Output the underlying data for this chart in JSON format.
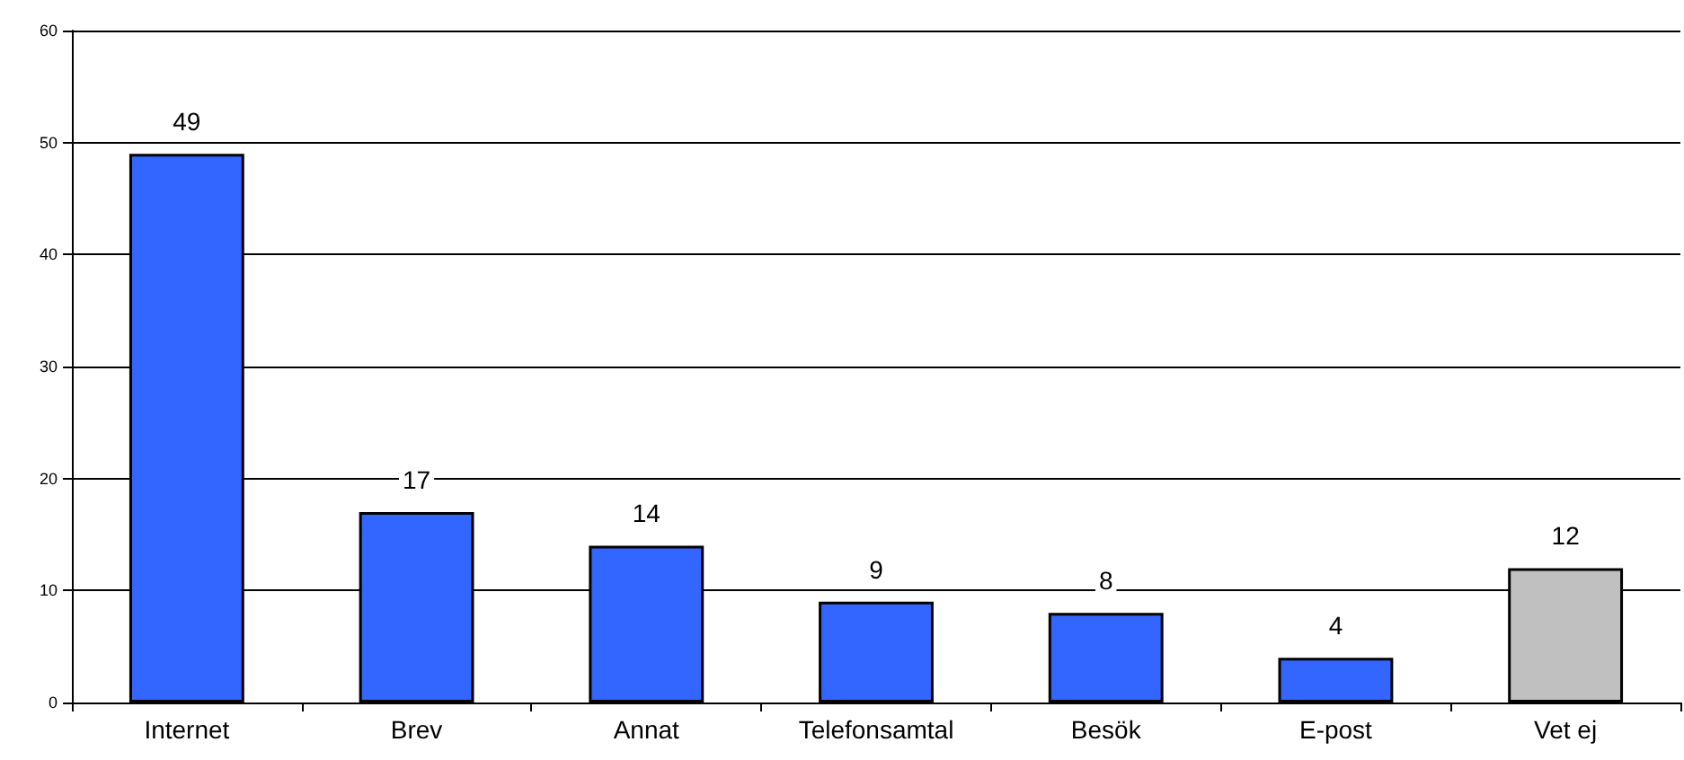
{
  "chart_data": {
    "type": "bar",
    "categories": [
      "Internet",
      "Brev",
      "Annat",
      "Telefonsamtal",
      "Besök",
      "E-post",
      "Vet ej"
    ],
    "values": [
      49,
      17,
      14,
      9,
      8,
      4,
      12
    ],
    "colors": [
      "#3366ff",
      "#3366ff",
      "#3366ff",
      "#3366ff",
      "#3366ff",
      "#3366ff",
      "#c0c0c0"
    ],
    "ylim": [
      0,
      60
    ],
    "yticks": [
      0,
      10,
      20,
      30,
      40,
      50,
      60
    ],
    "grid": "y",
    "data_labels": true
  }
}
